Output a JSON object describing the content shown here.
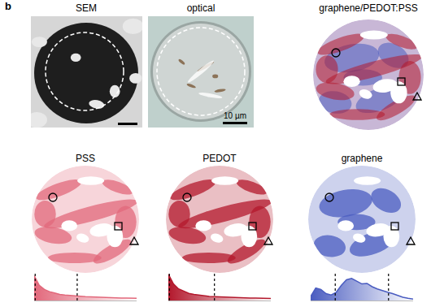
{
  "panel_label": "b",
  "panels": [
    {
      "title": "SEM"
    },
    {
      "title": "optical",
      "scale_bar": "10 µm"
    },
    {
      "title": "graphene/PEDOT:PSS"
    },
    {
      "title": "PSS",
      "color": "#e2687b"
    },
    {
      "title": "PEDOT",
      "color": "#b3182c"
    },
    {
      "title": "graphene",
      "color": "#4a5cc0"
    }
  ],
  "chart_data": [
    {
      "type": "area",
      "map": "PSS",
      "color": "#e2687b",
      "tick_labels": false,
      "x": [
        0,
        5,
        10,
        15,
        20,
        25,
        30,
        35,
        40,
        45,
        50,
        55,
        60,
        65,
        70,
        75,
        80,
        85,
        90,
        95,
        100
      ],
      "values": [
        0.9,
        0.55,
        0.4,
        0.32,
        0.27,
        0.22,
        0.2,
        0.18,
        0.16,
        0.15,
        0.14,
        0.13,
        0.12,
        0.12,
        0.11,
        0.1,
        0.1,
        0.09,
        0.09,
        0.08,
        0.08
      ],
      "xlim": [
        0,
        100
      ],
      "ylim": [
        0,
        1
      ],
      "thresholds": [
        1,
        42
      ]
    },
    {
      "type": "area",
      "map": "PEDOT",
      "color": "#b3182c",
      "tick_labels": false,
      "x": [
        0,
        5,
        10,
        15,
        20,
        25,
        30,
        35,
        40,
        45,
        50,
        55,
        60,
        65,
        70,
        75,
        80,
        85,
        90,
        95,
        100
      ],
      "values": [
        0.95,
        0.6,
        0.42,
        0.33,
        0.26,
        0.22,
        0.19,
        0.17,
        0.15,
        0.14,
        0.13,
        0.12,
        0.12,
        0.11,
        0.1,
        0.1,
        0.09,
        0.09,
        0.08,
        0.08,
        0.07
      ],
      "xlim": [
        0,
        100
      ],
      "ylim": [
        0,
        1
      ],
      "thresholds": [
        1,
        45
      ]
    },
    {
      "type": "area",
      "map": "graphene",
      "color": "#4a5cc0",
      "tick_labels": false,
      "x": [
        0,
        5,
        10,
        15,
        20,
        25,
        30,
        35,
        40,
        45,
        50,
        55,
        60,
        65,
        70,
        75,
        80,
        85,
        90,
        95,
        100
      ],
      "values": [
        0.15,
        0.45,
        0.4,
        0.25,
        0.2,
        0.3,
        0.55,
        0.75,
        0.8,
        0.7,
        0.6,
        0.62,
        0.5,
        0.42,
        0.35,
        0.3,
        0.25,
        0.18,
        0.12,
        0.08,
        0.05
      ],
      "xlim": [
        0,
        100
      ],
      "ylim": [
        0,
        1
      ],
      "thresholds": [
        24,
        76
      ]
    }
  ]
}
